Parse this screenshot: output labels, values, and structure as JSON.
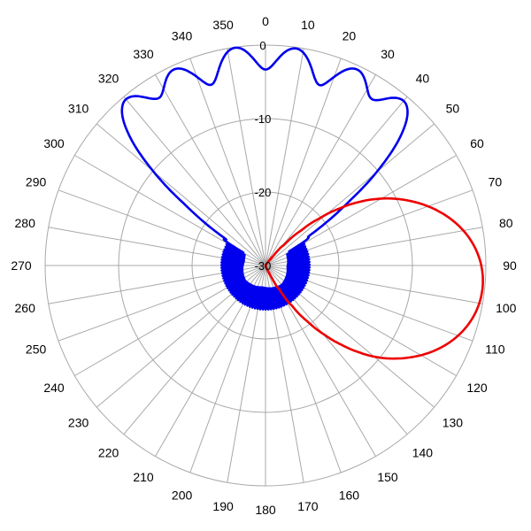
{
  "chart_data": {
    "type": "polar-line",
    "title": "",
    "angle_unit": "degrees",
    "angle_direction": "clockwise",
    "angle_zero": "top",
    "angle_ticks": [
      "0",
      "10",
      "20",
      "30",
      "40",
      "50",
      "60",
      "70",
      "80",
      "90",
      "100",
      "110",
      "120",
      "130",
      "140",
      "150",
      "160",
      "170",
      "180",
      "190",
      "200",
      "210",
      "220",
      "230",
      "240",
      "250",
      "260",
      "270",
      "280",
      "290",
      "300",
      "310",
      "320",
      "330",
      "340",
      "350"
    ],
    "radial_ticks": [
      {
        "value": 0,
        "label": "0"
      },
      {
        "value": -10,
        "label": "-10"
      },
      {
        "value": -20,
        "label": "-20"
      },
      {
        "value": -30,
        "label": "-30"
      }
    ],
    "rlim": [
      -30,
      0
    ],
    "grid": true,
    "series": [
      {
        "color": "#0000ee",
        "lobes": [
          {
            "angle": -40,
            "peak": -0.5,
            "width": 8
          },
          {
            "angle": -25,
            "peak": -0.6,
            "width": 8
          },
          {
            "angle": -8,
            "peak": -0.1,
            "width": 8
          },
          {
            "angle": 8,
            "peak": -0.2,
            "width": 8
          },
          {
            "angle": 25,
            "peak": -0.6,
            "width": 8
          },
          {
            "angle": 40,
            "peak": -0.8,
            "width": 8
          }
        ],
        "noise_floor": -24
      },
      {
        "color": "#ee0000",
        "lobes": [
          {
            "angle": 96,
            "peak": -0.3,
            "width": 26
          },
          {
            "angle": 62,
            "peak": -22.5,
            "width": 10
          },
          {
            "angle": 128,
            "peak": -24,
            "width": 6
          }
        ],
        "noise_floor": -31
      }
    ]
  }
}
